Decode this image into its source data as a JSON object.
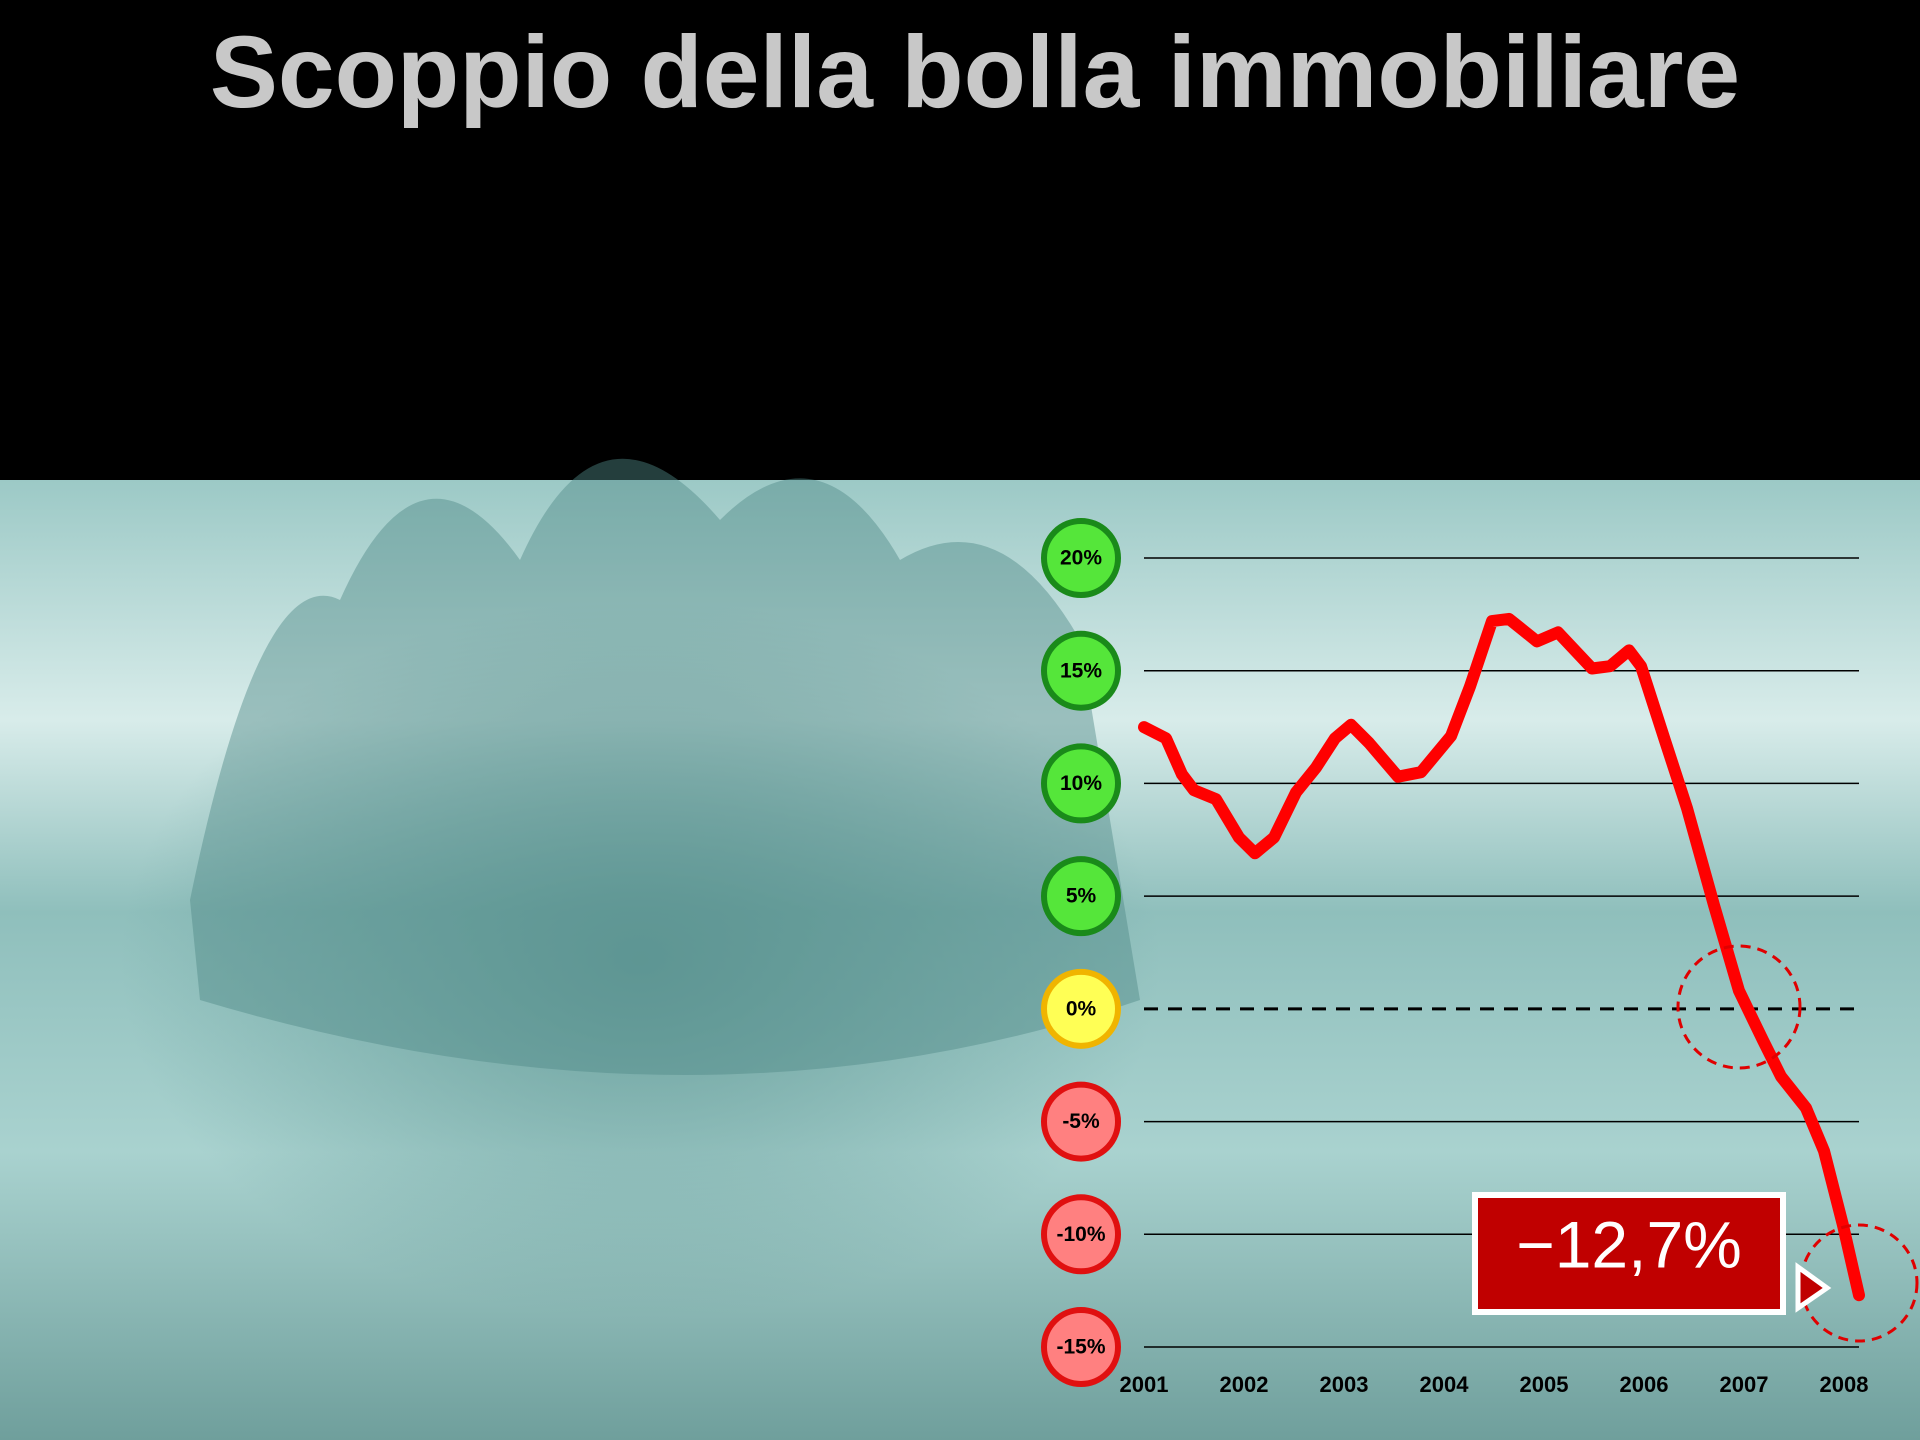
{
  "chart_data": {
    "type": "line",
    "title": "Scoppio della bolla immobiliare",
    "annotation": "−12,7%",
    "x": [
      2001.0,
      2001.22,
      2001.38,
      2001.5,
      2001.72,
      2001.95,
      2002.11,
      2002.3,
      2002.52,
      2002.72,
      2002.91,
      2003.07,
      2003.25,
      2003.54,
      2003.77,
      2004.07,
      2004.26,
      2004.48,
      2004.65,
      2004.93,
      2005.14,
      2005.48,
      2005.66,
      2005.85,
      2005.97,
      2006.21,
      2006.43,
      2006.7,
      2006.95,
      2007.19,
      2007.37,
      2007.62,
      2007.8,
      2007.99,
      2008.15
    ],
    "series": [
      {
        "color": "#ff0000",
        "values": [
          12.5,
          12.0,
          10.4,
          9.7,
          9.3,
          7.6,
          6.9,
          7.6,
          9.6,
          10.7,
          12.0,
          12.6,
          11.8,
          10.3,
          10.5,
          12.1,
          14.3,
          17.2,
          17.3,
          16.3,
          16.7,
          15.1,
          15.2,
          15.9,
          15.2,
          11.9,
          8.9,
          4.6,
          0.8,
          -1.4,
          -3.0,
          -4.4,
          -6.3,
          -9.6,
          -12.7
        ]
      }
    ],
    "xlim": [
      2001,
      2008.15
    ],
    "xticks": [
      2001,
      2002,
      2003,
      2004,
      2005,
      2006,
      2007,
      2008
    ],
    "ylim": [
      -15,
      20
    ],
    "yticks": [
      {
        "value": 20,
        "label": "20%"
      },
      {
        "value": 15,
        "label": "15%"
      },
      {
        "value": 10,
        "label": "10%"
      },
      {
        "value": 5,
        "label": "5%"
      },
      {
        "value": 0,
        "label": "0%"
      },
      {
        "value": -5,
        "label": "-5%"
      },
      {
        "value": -10,
        "label": "-10%"
      },
      {
        "value": -15,
        "label": "-15%"
      }
    ],
    "grid": true
  }
}
